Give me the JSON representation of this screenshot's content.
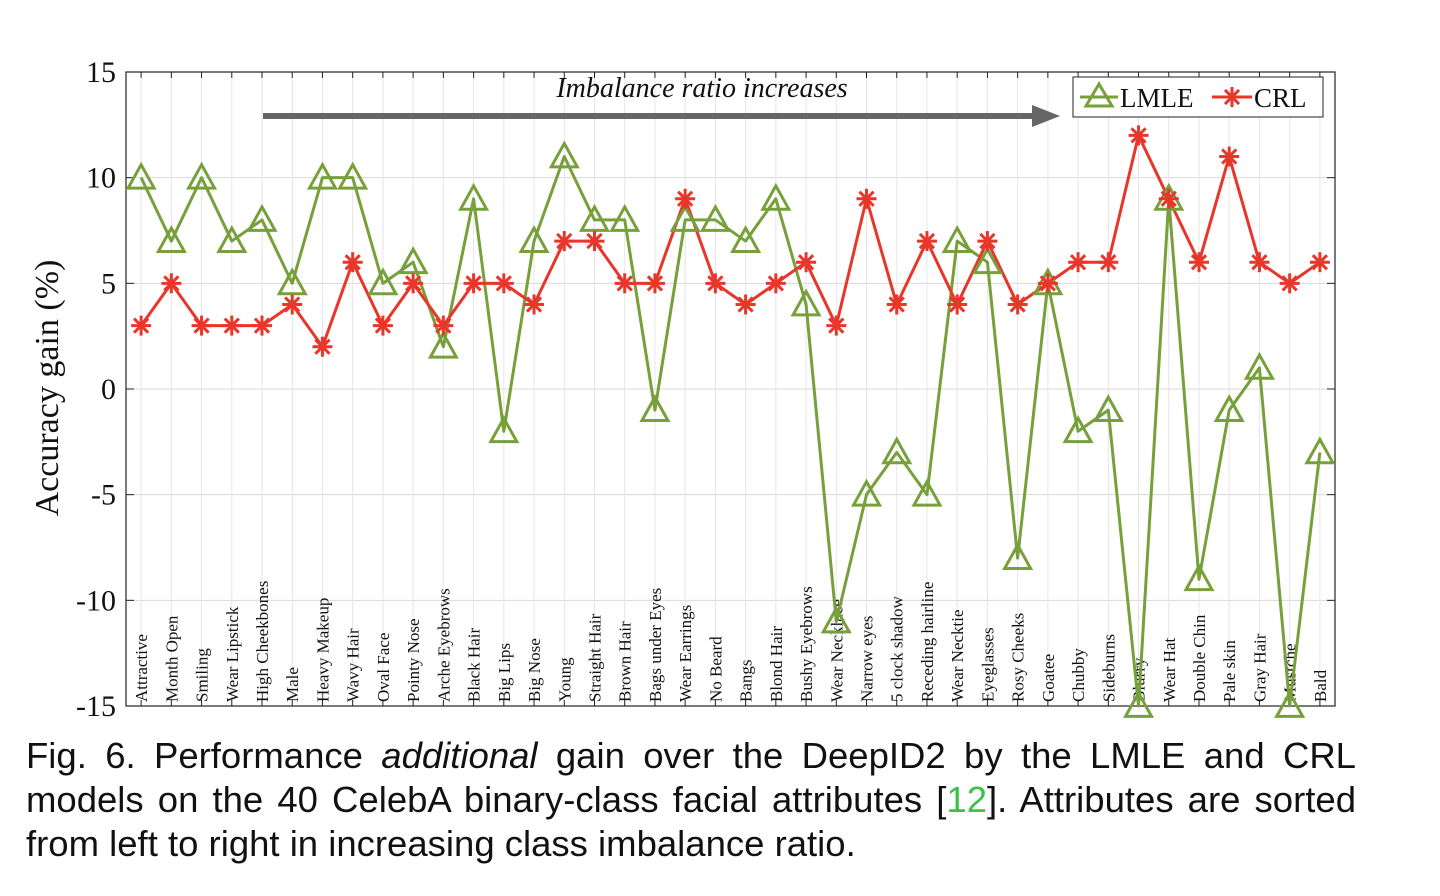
{
  "chart_data": {
    "type": "line",
    "ylabel": "Accuracy gain (%)",
    "xlabel": "",
    "ylim": [
      -15,
      15
    ],
    "yticks": [
      "15",
      "10",
      "5",
      "0",
      "-5",
      "-10",
      "-15"
    ],
    "grid": true,
    "legend_position": "top-right",
    "annotation": "Imbalance ratio increases",
    "categories": [
      "Attractive",
      "Month Open",
      "Smiling",
      "Wear Lipstick",
      "High Cheekbones",
      "Male",
      "Heavy Makeup",
      "Wavy Hair",
      "Oval Face",
      "Pointy Nose",
      "Arche Eyebrows",
      "Black Hair",
      "Big Lips",
      "Big Nose",
      "Young",
      "Straight Hair",
      "Brown Hair",
      "Bags under Eyes",
      "Wear Earrings",
      "No Beard",
      "Bangs",
      "Blond Hair",
      "Bushy Eyebrows",
      "Wear Necklace",
      "Narrow eyes",
      "5 clock shadow",
      "Receding hairline",
      "Wear Necktie",
      "Eyeglasses",
      "Rosy Cheeks",
      "Goatee",
      "Chubby",
      "Sideburns",
      "Blurry",
      "Wear Hat",
      "Double Chin",
      "Pale skin",
      "Gray Hair",
      "Mustche",
      "Bald"
    ],
    "series": [
      {
        "name": "LMLE",
        "color": "#77a03a",
        "marker": "triangle",
        "values": [
          10,
          7,
          10,
          7,
          8,
          5,
          10,
          10,
          5,
          6,
          2,
          9,
          -2,
          7,
          11,
          8,
          8,
          -1,
          8,
          8,
          7,
          9,
          4,
          -11,
          -5,
          -3,
          -5,
          7,
          6,
          -8,
          5,
          -2,
          -1,
          -15,
          9,
          -9,
          -1,
          1,
          -15,
          -3
        ]
      },
      {
        "name": "CRL",
        "color": "#e8362b",
        "marker": "asterisk",
        "values": [
          3,
          5,
          3,
          3,
          3,
          4,
          2,
          6,
          3,
          5,
          3,
          5,
          5,
          4,
          7,
          7,
          5,
          5,
          9,
          5,
          4,
          5,
          6,
          3,
          9,
          4,
          7,
          4,
          7,
          4,
          5,
          6,
          6,
          12,
          9,
          6,
          11,
          6,
          5,
          6
        ]
      }
    ]
  },
  "caption": {
    "part1": "Fig. 6.  Performance ",
    "emphasis": "additional",
    "part2": " gain over the DeepID2 by the LMLE and CRL models on the 40 CelebA binary-class facial attributes [",
    "ref": "12",
    "part3": "]. Attributes are sorted from left to right in increasing class imbalance ratio."
  }
}
